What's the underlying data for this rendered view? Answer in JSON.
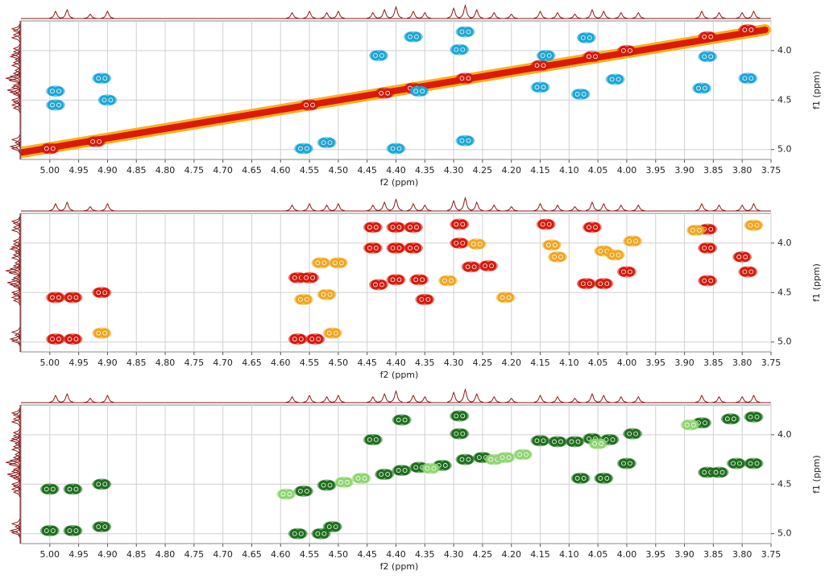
{
  "chart_data": [
    {
      "type": "contour",
      "xlabel": "f2 (ppm)",
      "ylabel": "f1 (ppm)",
      "xlim": [
        5.05,
        3.75
      ],
      "ylim": [
        5.1,
        3.7
      ],
      "xticks": [
        {
          "value": 5,
          "label": "5.00"
        },
        4.95,
        {
          "value": 4.9,
          "label": "4.90"
        },
        4.85,
        {
          "value": 4.8,
          "label": "4.80"
        },
        4.75,
        {
          "value": 4.7,
          "label": "4.70"
        },
        4.65,
        {
          "value": 4.6,
          "label": "4.60"
        },
        4.55,
        {
          "value": 4.5,
          "label": "4.50"
        },
        4.45,
        {
          "value": 4.4,
          "label": "4.40"
        },
        4.35,
        {
          "value": 4.3,
          "label": "4.30"
        },
        4.25,
        {
          "value": 4.2,
          "label": "4.20"
        },
        4.15,
        {
          "value": 4.1,
          "label": "4.10"
        },
        4.05,
        {
          "value": 4,
          "label": "4.00"
        },
        3.95,
        {
          "value": 3.9,
          "label": "3.90"
        },
        3.85,
        {
          "value": 3.8,
          "label": "3.80"
        },
        3.75
      ],
      "yticks": [
        {
          "value": 4,
          "label": "4.0"
        },
        4.5,
        {
          "value": 5,
          "label": "5.0"
        }
      ],
      "grid": true,
      "series": [
        {
          "style": "band",
          "color": "#dd1a0a",
          "edge_color": "#f5b21e",
          "x": [
            5.05,
            3.76
          ],
          "values": [
            5.03,
            3.79
          ]
        },
        {
          "style": "peaks",
          "color": "#d8180a",
          "x": [
            5.0,
            4.92,
            4.55,
            4.42,
            4.37,
            4.28,
            4.15,
            4.06,
            4.0,
            3.86,
            3.79
          ],
          "values": [
            4.99,
            4.92,
            4.55,
            4.43,
            4.38,
            4.28,
            4.15,
            4.06,
            4.0,
            3.86,
            3.79
          ]
        },
        {
          "style": "peaks",
          "color": "#1aa6d6",
          "x": [
            4.99,
            4.99,
            4.9,
            4.91,
            4.56,
            4.52,
            4.43,
            4.37,
            4.28,
            4.29,
            4.4,
            4.28,
            4.36,
            4.15,
            4.14,
            4.07,
            4.08,
            4.02,
            3.87,
            3.86,
            3.79
          ],
          "values": [
            4.41,
            4.55,
            4.5,
            4.28,
            4.99,
            4.93,
            4.05,
            3.86,
            3.81,
            3.99,
            4.99,
            4.91,
            4.41,
            4.37,
            4.05,
            3.87,
            4.44,
            4.29,
            4.38,
            4.06,
            4.28
          ]
        }
      ]
    },
    {
      "type": "contour",
      "xlabel": "f2 (ppm)",
      "ylabel": "f1 (ppm)",
      "xlim": [
        5.05,
        3.75
      ],
      "ylim": [
        5.1,
        3.7
      ],
      "xticks": [
        {
          "value": 5,
          "label": "5.00"
        },
        4.95,
        {
          "value": 4.9,
          "label": "4.90"
        },
        4.85,
        {
          "value": 4.8,
          "label": "4.80"
        },
        4.75,
        {
          "value": 4.7,
          "label": "4.70"
        },
        4.65,
        {
          "value": 4.6,
          "label": "4.60"
        },
        4.55,
        {
          "value": 4.5,
          "label": "4.50"
        },
        4.45,
        {
          "value": 4.4,
          "label": "4.40"
        },
        4.35,
        {
          "value": 4.3,
          "label": "4.30"
        },
        4.25,
        {
          "value": 4.2,
          "label": "4.20"
        },
        4.15,
        {
          "value": 4.1,
          "label": "4.10"
        },
        4.05,
        {
          "value": 4,
          "label": "4.00"
        },
        3.95,
        {
          "value": 3.9,
          "label": "3.90"
        },
        3.85,
        {
          "value": 3.8,
          "label": "3.80"
        },
        3.75
      ],
      "yticks": [
        {
          "value": 4,
          "label": "4.0"
        },
        4.5,
        {
          "value": 5,
          "label": "5.0"
        }
      ],
      "grid": true,
      "series": [
        {
          "style": "peaks",
          "color": "#d8180a",
          "x": [
            4.99,
            4.96,
            4.91,
            4.99,
            4.96,
            4.57,
            4.55,
            4.57,
            4.54,
            4.44,
            4.4,
            4.37,
            4.44,
            4.4,
            4.37,
            4.43,
            4.4,
            4.36,
            4.35,
            4.29,
            4.29,
            4.27,
            4.24,
            4.14,
            4.06,
            4.07,
            4.04,
            4.0,
            3.86,
            3.86,
            3.86,
            3.8,
            3.79
          ],
          "values": [
            4.55,
            4.55,
            4.5,
            4.97,
            4.97,
            4.35,
            4.35,
            4.97,
            4.97,
            3.84,
            3.84,
            3.84,
            4.05,
            4.05,
            4.05,
            4.42,
            4.37,
            4.37,
            4.57,
            3.81,
            4.0,
            4.24,
            4.23,
            3.81,
            3.84,
            4.41,
            4.41,
            4.29,
            3.86,
            4.05,
            4.38,
            4.14,
            4.29
          ]
        },
        {
          "style": "peaks",
          "color": "#f2a51e",
          "x": [
            4.91,
            4.56,
            4.52,
            4.51,
            4.53,
            4.5,
            4.31,
            4.26,
            4.21,
            4.13,
            4.12,
            4.04,
            4.02,
            3.99,
            3.88,
            3.78
          ],
          "values": [
            4.91,
            4.57,
            4.52,
            4.91,
            4.2,
            4.2,
            4.38,
            4.01,
            4.55,
            4.02,
            4.14,
            4.08,
            4.12,
            3.98,
            3.87,
            3.82
          ]
        }
      ]
    },
    {
      "type": "contour",
      "xlabel": "f2 (ppm)",
      "ylabel": "f1 (ppm)",
      "xlim": [
        5.05,
        3.75
      ],
      "ylim": [
        5.1,
        3.7
      ],
      "xticks": [
        {
          "value": 5,
          "label": "5.00"
        },
        4.95,
        {
          "value": 4.9,
          "label": "4.90"
        },
        4.85,
        {
          "value": 4.8,
          "label": "4.80"
        },
        4.75,
        {
          "value": 4.7,
          "label": "4.70"
        },
        4.65,
        {
          "value": 4.6,
          "label": "4.60"
        },
        4.55,
        {
          "value": 4.5,
          "label": "4.50"
        },
        4.45,
        {
          "value": 4.4,
          "label": "4.40"
        },
        4.35,
        {
          "value": 4.3,
          "label": "4.30"
        },
        4.25,
        {
          "value": 4.2,
          "label": "4.20"
        },
        4.15,
        {
          "value": 4.1,
          "label": "4.10"
        },
        4.05,
        {
          "value": 4,
          "label": "4.00"
        },
        3.95,
        {
          "value": 3.9,
          "label": "3.90"
        },
        3.85,
        {
          "value": 3.8,
          "label": "3.80"
        },
        3.75
      ],
      "yticks": [
        {
          "value": 4,
          "label": "4.0"
        },
        4.5,
        {
          "value": 5,
          "label": "5.0"
        }
      ],
      "grid": true,
      "series": [
        {
          "style": "peaks",
          "color": "#1d6e1d",
          "x": [
            5.0,
            4.96,
            4.91,
            5.0,
            4.96,
            4.91,
            4.56,
            4.52,
            4.57,
            4.53,
            4.51,
            4.44,
            4.42,
            4.39,
            4.39,
            4.36,
            4.32,
            4.29,
            4.29,
            4.28,
            4.25,
            4.15,
            4.12,
            4.09,
            4.06,
            4.03,
            3.99,
            4.08,
            4.04,
            4.0,
            3.87,
            3.82,
            3.78,
            3.86,
            3.84,
            3.81,
            3.78
          ],
          "values": [
            4.55,
            4.55,
            4.5,
            4.97,
            4.97,
            4.93,
            4.57,
            4.51,
            5.0,
            5.0,
            4.93,
            4.05,
            4.4,
            3.85,
            4.36,
            4.33,
            4.31,
            3.81,
            3.99,
            4.25,
            4.23,
            4.06,
            4.07,
            4.07,
            4.04,
            4.05,
            3.99,
            4.44,
            4.44,
            4.29,
            3.88,
            3.84,
            3.82,
            4.38,
            4.38,
            4.29,
            4.29
          ]
        },
        {
          "style": "peaks",
          "color": "#8fd470",
          "x": [
            4.59,
            4.49,
            4.46,
            4.34,
            4.23,
            4.21,
            4.18,
            4.05,
            3.89
          ],
          "values": [
            4.6,
            4.48,
            4.44,
            4.34,
            4.25,
            4.23,
            4.2,
            4.09,
            3.9
          ]
        }
      ]
    }
  ],
  "projection": {
    "x": [
      4.99,
      4.97,
      4.93,
      4.9,
      4.58,
      4.55,
      4.52,
      4.5,
      4.44,
      4.42,
      4.4,
      4.37,
      4.35,
      4.3,
      4.28,
      4.26,
      4.23,
      4.2,
      4.15,
      4.12,
      4.09,
      4.06,
      4.04,
      4.01,
      3.98,
      3.87,
      3.84,
      3.8,
      3.78
    ],
    "heights": [
      0.5,
      0.6,
      0.3,
      0.5,
      0.4,
      0.5,
      0.4,
      0.5,
      0.4,
      0.6,
      0.8,
      0.5,
      0.4,
      0.7,
      0.9,
      0.6,
      0.4,
      0.3,
      0.5,
      0.4,
      0.3,
      0.6,
      0.5,
      0.4,
      0.4,
      0.5,
      0.4,
      0.4,
      0.5
    ]
  }
}
